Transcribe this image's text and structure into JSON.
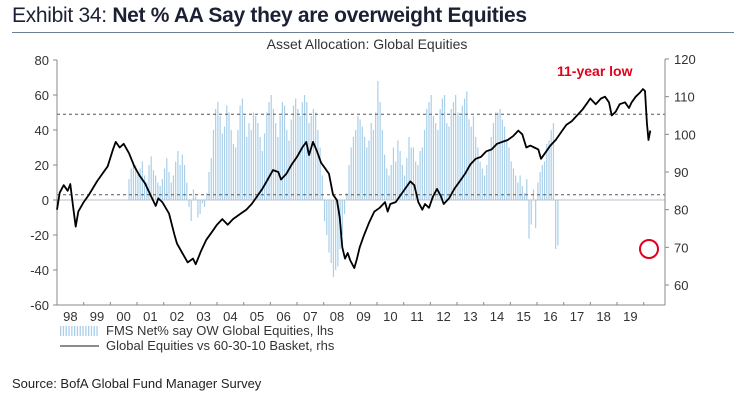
{
  "header": {
    "exhibit_number": "Exhibit 34:",
    "exhibit_title": "Net % AA Say they are overweight Equities"
  },
  "source": "Source: BofA Global Fund Manager Survey",
  "colors": {
    "bars": "#a9cfea",
    "line": "#000000",
    "annotation": "#e3001b",
    "reference_lines": "#555555"
  },
  "chart_data": {
    "type": "bar+line",
    "title": "Asset Allocation: Global Equities",
    "x_ticks": [
      "98",
      "99",
      "00",
      "01",
      "02",
      "03",
      "04",
      "05",
      "06",
      "07",
      "08",
      "09",
      "10",
      "11",
      "12",
      "13",
      "14",
      "15",
      "16",
      "17",
      "18",
      "19"
    ],
    "x_range": [
      1998.0,
      2020.8
    ],
    "y_left": {
      "label": "lhs",
      "range": [
        -60,
        80
      ],
      "ticks": [
        80,
        60,
        40,
        20,
        0,
        -20,
        -40,
        -60
      ]
    },
    "y_right": {
      "label": "rhs",
      "range": [
        60,
        120
      ],
      "ticks": [
        120,
        110,
        100,
        90,
        80,
        70,
        60
      ]
    },
    "reference_lines_lhs": [
      49,
      3
    ],
    "legend": [
      {
        "name": "FMS Net% say OW Global Equities, lhs",
        "type": "bar"
      },
      {
        "name": "Global Equities vs 60-30-10 Basket, rhs",
        "type": "line"
      }
    ],
    "annotation": {
      "text": "11-year low",
      "point_year": 2020.2,
      "point_value_lhs": -28
    },
    "series": [
      {
        "name": "FMS Net% say OW Global Equities",
        "axis": "lhs",
        "type": "bar",
        "frequency": "monthly",
        "start": 2000.7,
        "values": [
          12,
          18,
          22,
          20,
          15,
          18,
          22,
          14,
          10,
          20,
          25,
          17,
          14,
          10,
          8,
          12,
          18,
          24,
          16,
          10,
          14,
          22,
          28,
          20,
          26,
          20,
          10,
          -4,
          -12,
          6,
          2,
          -10,
          -8,
          -2,
          -4,
          4,
          16,
          24,
          40,
          52,
          56,
          48,
          38,
          42,
          54,
          50,
          40,
          32,
          30,
          40,
          54,
          58,
          48,
          36,
          44,
          40,
          50,
          48,
          44,
          36,
          28,
          38,
          50,
          56,
          60,
          52,
          44,
          36,
          48,
          56,
          54,
          40,
          34,
          46,
          54,
          58,
          52,
          48,
          56,
          60,
          56,
          44,
          48,
          52,
          50,
          40,
          30,
          14,
          -12,
          -20,
          -30,
          -36,
          -44,
          -40,
          -38,
          -28,
          -20,
          -8,
          4,
          20,
          30,
          36,
          40,
          48,
          46,
          42,
          36,
          30,
          34,
          44,
          40,
          50,
          68,
          56,
          40,
          26,
          18,
          14,
          20,
          30,
          22,
          34,
          28,
          20,
          14,
          24,
          36,
          30,
          30,
          22,
          20,
          28,
          30,
          40,
          52,
          56,
          60,
          48,
          44,
          40,
          52,
          58,
          60,
          44,
          42,
          52,
          56,
          60,
          50,
          48,
          54,
          58,
          62,
          46,
          42,
          48,
          36,
          30,
          22,
          18,
          14,
          20,
          28,
          36,
          44,
          50,
          50,
          52,
          46,
          42,
          34,
          30,
          22,
          18,
          14,
          10,
          14,
          8,
          4,
          12,
          -22,
          -14,
          6,
          -16,
          10,
          16,
          20,
          22,
          32,
          34,
          40,
          44,
          -28,
          -26
        ]
      },
      {
        "name": "Global Equities vs 60-30-10 Basket",
        "axis": "rhs",
        "type": "line",
        "points": [
          [
            1998.0,
            80.0
          ],
          [
            1998.1,
            84.5
          ],
          [
            1998.25,
            86.5
          ],
          [
            1998.4,
            85.0
          ],
          [
            1998.5,
            86.8
          ],
          [
            1998.6,
            81.0
          ],
          [
            1998.7,
            75.5
          ],
          [
            1998.8,
            79.5
          ],
          [
            1999.0,
            82.0
          ],
          [
            1999.2,
            84.0
          ],
          [
            1999.5,
            87.5
          ],
          [
            1999.7,
            89.5
          ],
          [
            1999.9,
            91.5
          ],
          [
            2000.1,
            96.0
          ],
          [
            2000.2,
            98.0
          ],
          [
            2000.35,
            96.5
          ],
          [
            2000.5,
            97.5
          ],
          [
            2000.7,
            95.0
          ],
          [
            2000.9,
            91.5
          ],
          [
            2001.1,
            89.0
          ],
          [
            2001.3,
            87.0
          ],
          [
            2001.5,
            84.0
          ],
          [
            2001.7,
            81.0
          ],
          [
            2001.8,
            83.0
          ],
          [
            2001.95,
            82.0
          ],
          [
            2002.2,
            79.0
          ],
          [
            2002.4,
            73.5
          ],
          [
            2002.5,
            71.0
          ],
          [
            2002.7,
            68.5
          ],
          [
            2002.9,
            66.0
          ],
          [
            2003.1,
            67.0
          ],
          [
            2003.2,
            65.5
          ],
          [
            2003.4,
            69.0
          ],
          [
            2003.6,
            72.0
          ],
          [
            2003.8,
            74.0
          ],
          [
            2004.0,
            76.0
          ],
          [
            2004.2,
            77.5
          ],
          [
            2004.4,
            76.0
          ],
          [
            2004.6,
            77.5
          ],
          [
            2004.9,
            79.0
          ],
          [
            2005.1,
            80.0
          ],
          [
            2005.3,
            81.5
          ],
          [
            2005.5,
            83.5
          ],
          [
            2005.7,
            85.5
          ],
          [
            2005.9,
            88.0
          ],
          [
            2006.1,
            90.5
          ],
          [
            2006.3,
            90.0
          ],
          [
            2006.4,
            88.0
          ],
          [
            2006.6,
            89.5
          ],
          [
            2006.8,
            92.0
          ],
          [
            2007.0,
            94.0
          ],
          [
            2007.2,
            96.5
          ],
          [
            2007.35,
            98.0
          ],
          [
            2007.45,
            94.5
          ],
          [
            2007.6,
            98.0
          ],
          [
            2007.75,
            95.5
          ],
          [
            2007.9,
            92.5
          ],
          [
            2008.05,
            91.0
          ],
          [
            2008.2,
            89.5
          ],
          [
            2008.35,
            84.0
          ],
          [
            2008.5,
            82.5
          ],
          [
            2008.6,
            78.0
          ],
          [
            2008.7,
            70.0
          ],
          [
            2008.8,
            67.0
          ],
          [
            2008.9,
            68.5
          ],
          [
            2009.0,
            66.5
          ],
          [
            2009.15,
            64.5
          ],
          [
            2009.25,
            67.0
          ],
          [
            2009.35,
            70.0
          ],
          [
            2009.5,
            73.0
          ],
          [
            2009.7,
            76.5
          ],
          [
            2009.9,
            79.5
          ],
          [
            2010.1,
            80.5
          ],
          [
            2010.3,
            82.0
          ],
          [
            2010.4,
            79.5
          ],
          [
            2010.5,
            81.5
          ],
          [
            2010.7,
            82.0
          ],
          [
            2010.9,
            84.0
          ],
          [
            2011.1,
            86.0
          ],
          [
            2011.25,
            87.5
          ],
          [
            2011.4,
            86.5
          ],
          [
            2011.55,
            82.0
          ],
          [
            2011.7,
            80.0
          ],
          [
            2011.8,
            81.5
          ],
          [
            2011.95,
            80.5
          ],
          [
            2012.1,
            83.5
          ],
          [
            2012.25,
            85.5
          ],
          [
            2012.4,
            83.5
          ],
          [
            2012.5,
            81.5
          ],
          [
            2012.7,
            83.0
          ],
          [
            2012.9,
            85.5
          ],
          [
            2013.1,
            87.5
          ],
          [
            2013.3,
            89.5
          ],
          [
            2013.5,
            92.0
          ],
          [
            2013.7,
            93.5
          ],
          [
            2013.9,
            94.0
          ],
          [
            2014.1,
            95.5
          ],
          [
            2014.3,
            96.0
          ],
          [
            2014.5,
            97.5
          ],
          [
            2014.7,
            98.0
          ],
          [
            2014.9,
            98.5
          ],
          [
            2015.1,
            99.5
          ],
          [
            2015.3,
            101.0
          ],
          [
            2015.45,
            100.0
          ],
          [
            2015.6,
            96.5
          ],
          [
            2015.75,
            97.0
          ],
          [
            2015.9,
            96.5
          ],
          [
            2016.05,
            96.0
          ],
          [
            2016.15,
            93.5
          ],
          [
            2016.3,
            95.0
          ],
          [
            2016.5,
            97.0
          ],
          [
            2016.7,
            98.5
          ],
          [
            2016.9,
            100.5
          ],
          [
            2017.1,
            102.5
          ],
          [
            2017.3,
            103.5
          ],
          [
            2017.5,
            105.0
          ],
          [
            2017.7,
            106.5
          ],
          [
            2017.9,
            108.5
          ],
          [
            2018.0,
            109.5
          ],
          [
            2018.2,
            108.0
          ],
          [
            2018.4,
            109.5
          ],
          [
            2018.55,
            110.0
          ],
          [
            2018.7,
            108.5
          ],
          [
            2018.8,
            105.0
          ],
          [
            2018.95,
            106.0
          ],
          [
            2019.1,
            108.0
          ],
          [
            2019.3,
            108.5
          ],
          [
            2019.45,
            107.0
          ],
          [
            2019.55,
            108.5
          ],
          [
            2019.7,
            110.0
          ],
          [
            2019.85,
            111.0
          ],
          [
            2019.97,
            112.0
          ],
          [
            2020.05,
            111.5
          ],
          [
            2020.12,
            103.0
          ],
          [
            2020.18,
            98.5
          ],
          [
            2020.25,
            101.0
          ]
        ]
      }
    ]
  }
}
